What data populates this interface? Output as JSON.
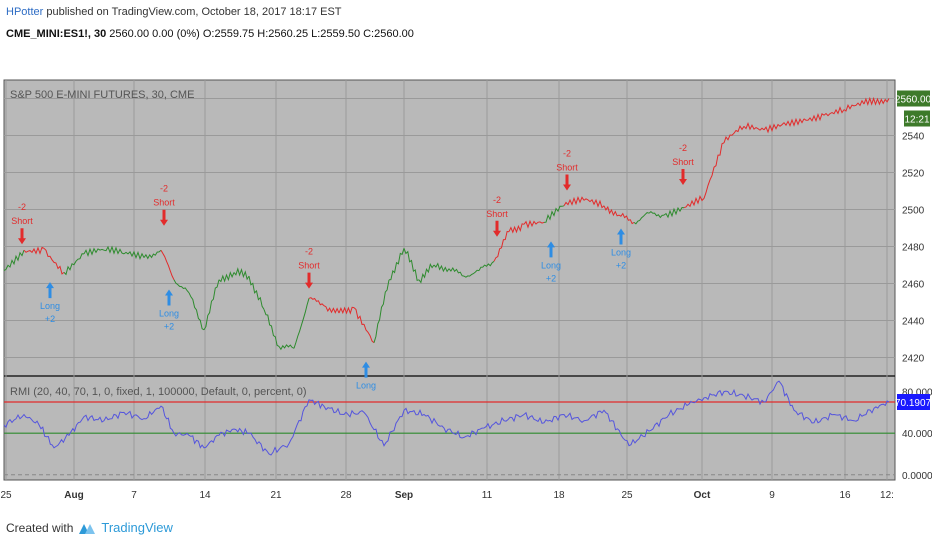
{
  "header": {
    "author": "HPotter",
    "published": " published on TradingView.com, October 18, 2017 18:17 EST"
  },
  "symbol": {
    "ticker": "CME_MINI:ES1!, 30",
    "quote": " 2560.00 0.00 (0%) O:2559.75 H:2560.25 L:2559.50 C:2560.00"
  },
  "footer": {
    "created_with": "Created with",
    "brand": "TradingView"
  },
  "colors": {
    "bull": "#2e8b2e",
    "bear": "#e22b2b",
    "long": "#2e8de4",
    "short": "#e22b2b",
    "rmi_line": "#5555dd",
    "upper_level": "#e22b2b",
    "lower_level": "#2e8b2e",
    "panel_bg": "#b9b9b9",
    "price_badge": "#3d7a2a",
    "rmi_badge": "#1a1aff"
  },
  "chart_data": [
    {
      "type": "line",
      "title": "S&P 500 E-MINI FUTURES, 30, CME",
      "y_ticks": [
        2420,
        2440,
        2460,
        2480,
        2500,
        2520,
        2540,
        2560
      ],
      "ylim": [
        2410,
        2570
      ],
      "x_ticks": [
        "25",
        "Aug",
        "7",
        "14",
        "21",
        "28",
        "Sep",
        "11",
        "18",
        "25",
        "Oct",
        "9",
        "16",
        "12:"
      ],
      "last_price": "2560.00",
      "countdown": "12:21",
      "series": [
        {
          "x": [
            0,
            20,
            40,
            60,
            80,
            100,
            120,
            140,
            157,
            170,
            185,
            200,
            215,
            230,
            245,
            260,
            275,
            290,
            305,
            320,
            335,
            350,
            360,
            370,
            385,
            400,
            415,
            430,
            445,
            460,
            475,
            490,
            505,
            520,
            540,
            560,
            580,
            600,
            615,
            630,
            645,
            660,
            680,
            700,
            720,
            740,
            760,
            780,
            800,
            820,
            840,
            860,
            885
          ],
          "values": [
            2467,
            2478,
            2479,
            2466,
            2476,
            2478,
            2476,
            2474,
            2478,
            2462,
            2455,
            2435,
            2462,
            2466,
            2464,
            2446,
            2426,
            2425,
            2452,
            2448,
            2444,
            2447,
            2438,
            2428,
            2462,
            2479,
            2462,
            2470,
            2468,
            2464,
            2467,
            2472,
            2488,
            2492,
            2493,
            2502,
            2505,
            2502,
            2497,
            2493,
            2498,
            2497,
            2501,
            2506,
            2536,
            2545,
            2543,
            2547,
            2549,
            2551,
            2554,
            2557,
            2560
          ],
          "colors": [
            "bull",
            "bear",
            "bear",
            "bull",
            "bull",
            "bull",
            "bull",
            "bull",
            "bear",
            "bull",
            "bull",
            "bull",
            "bull",
            "bull",
            "bull",
            "bull",
            "bull",
            "bull",
            "bear",
            "bear",
            "bear",
            "bear",
            "bear",
            "bull",
            "bull",
            "bull",
            "bull",
            "bull",
            "bull",
            "bull",
            "bull",
            "bear",
            "bear",
            "bear",
            "bull",
            "bear",
            "bear",
            "bear",
            "bear",
            "bull",
            "bull",
            "bull",
            "bear",
            "bear",
            "bear",
            "bear",
            "bear",
            "bear",
            "bear",
            "bear",
            "bear",
            "bear",
            "bear"
          ]
        }
      ],
      "signals": [
        {
          "type": "short",
          "label": "Short",
          "qty": "-2",
          "x": 18,
          "y": 2478
        },
        {
          "type": "long",
          "label": "Long",
          "qty": "+2",
          "x": 46,
          "y": 2464
        },
        {
          "type": "short",
          "label": "Short",
          "qty": "-2",
          "x": 160,
          "y": 2488
        },
        {
          "type": "long",
          "label": "Long",
          "qty": "+2",
          "x": 165,
          "y": 2460
        },
        {
          "type": "short",
          "label": "Short",
          "qty": "-2",
          "x": 305,
          "y": 2454
        },
        {
          "type": "long",
          "label": "Long",
          "qty": "",
          "x": 362,
          "y": 2421
        },
        {
          "type": "short",
          "label": "Short",
          "qty": "-2",
          "x": 493,
          "y": 2482
        },
        {
          "type": "long",
          "label": "Long",
          "qty": "+2",
          "x": 547,
          "y": 2486
        },
        {
          "type": "short",
          "label": "Short",
          "qty": "-2",
          "x": 563,
          "y": 2507
        },
        {
          "type": "long",
          "label": "Long",
          "qty": "+2",
          "x": 617,
          "y": 2493
        },
        {
          "type": "short",
          "label": "Short",
          "qty": "-2",
          "x": 679,
          "y": 2510
        }
      ]
    },
    {
      "type": "line",
      "title": "RMI (20, 40, 70, 1, 0, fixed, 1, 100000, Default, 0, percent, 0)",
      "y_ticks": [
        0,
        40,
        80
      ],
      "y_tick_labels": [
        "0.0000",
        "40.0000",
        "80.0000"
      ],
      "ylim": [
        -5,
        95
      ],
      "upper": 70,
      "lower": 40,
      "last_value": "70.1907",
      "series": [
        {
          "x": [
            0,
            20,
            35,
            50,
            65,
            80,
            100,
            120,
            140,
            157,
            170,
            185,
            200,
            215,
            230,
            245,
            265,
            285,
            305,
            320,
            340,
            360,
            380,
            400,
            420,
            440,
            460,
            480,
            500,
            520,
            540,
            560,
            580,
            600,
            625,
            645,
            665,
            685,
            700,
            720,
            740,
            760,
            775,
            790,
            810,
            830,
            850,
            870,
            885
          ],
          "values": [
            48,
            58,
            48,
            26,
            38,
            56,
            52,
            60,
            54,
            66,
            40,
            38,
            26,
            38,
            44,
            40,
            20,
            30,
            72,
            66,
            58,
            60,
            28,
            62,
            58,
            45,
            36,
            45,
            52,
            58,
            50,
            58,
            52,
            62,
            28,
            42,
            58,
            68,
            74,
            80,
            76,
            70,
            90,
            62,
            50,
            58,
            52,
            64,
            70
          ]
        }
      ]
    }
  ]
}
